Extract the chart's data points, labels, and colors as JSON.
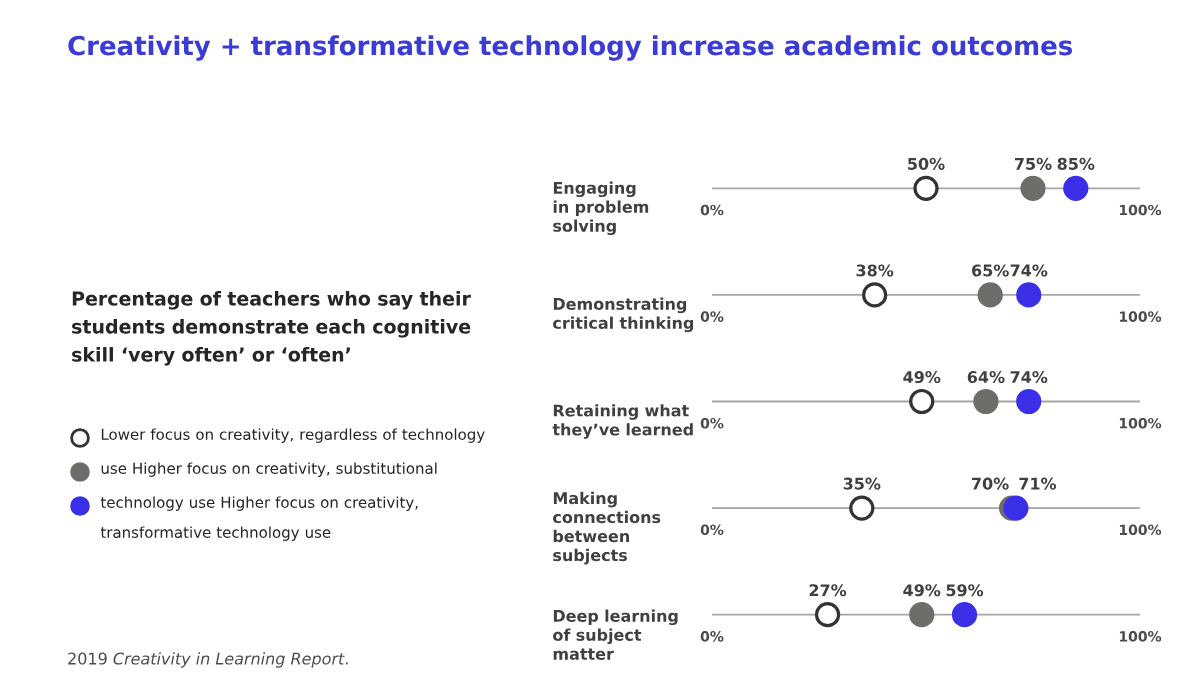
{
  "chart_data": {
    "type": "scatter",
    "orientation": "horizontal",
    "title": "Creativity + transformative technology increase academic outcomes",
    "subtitle": "Percentage of teachers who say their students demonstrate each cognitive skill ‘very often’ or ‘often’",
    "categories": [
      "Engaging in problem solving",
      "Demonstrating critical thinking",
      "Retaining what they’ve learned",
      "Making connections between subjects",
      "Deep learning of subject matter"
    ],
    "series": [
      {
        "name": "Lower focus on creativity, regardless of technology",
        "color": "#ffffff",
        "values": [
          50,
          38,
          49,
          35,
          27
        ],
        "value_labels": [
          "50%",
          "38%",
          "49%",
          "35%",
          "27%"
        ]
      },
      {
        "name": "use Higher focus on creativity, substitutional",
        "color": "#6f6d69",
        "values": [
          75,
          65,
          64,
          70,
          49
        ],
        "value_labels": [
          "75%",
          "65%",
          "64%",
          "70%",
          "49%"
        ]
      },
      {
        "name": "technology use Higher focus on creativity, transformative technology use",
        "color": "#3b2fe8",
        "values": [
          85,
          74,
          74,
          71,
          59
        ],
        "value_labels": [
          "85%",
          "74%",
          "74%",
          "71%",
          "59%"
        ]
      }
    ],
    "xlim": [
      0,
      100
    ],
    "xticks": [
      {
        "value": 0,
        "label": "0%"
      },
      {
        "value": 100,
        "label": "100%"
      }
    ],
    "marker": "circle",
    "legend": "left",
    "annotations": [
      "2019 *Creativity in Learning Report*."
    ]
  }
}
